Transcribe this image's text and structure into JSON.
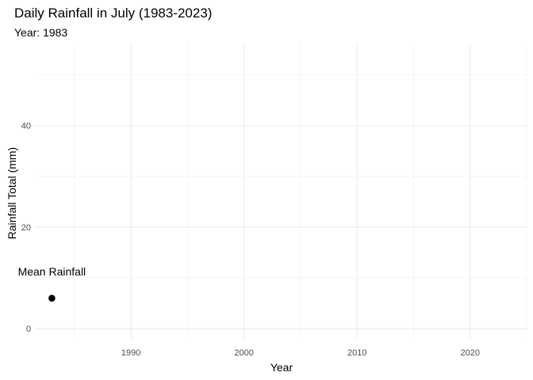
{
  "chart_data": {
    "type": "scatter",
    "title": "Daily Rainfall in July (1983-2023)",
    "subtitle": "Year: 1983",
    "xlabel": "Year",
    "ylabel": "Rainfall Total (mm)",
    "xlim": [
      1981.5,
      2025
    ],
    "ylim": [
      -2,
      56
    ],
    "x_ticks": [
      1990,
      2000,
      2010,
      2020
    ],
    "x_minor_ticks": [
      1985,
      1995,
      2005,
      2015,
      2025
    ],
    "y_ticks": [
      0,
      20,
      40
    ],
    "y_minor_ticks": [
      10,
      30,
      50
    ],
    "grid": true,
    "series": [
      {
        "name": "Mean Rainfall",
        "points": [
          {
            "x": 1983,
            "y": 6
          }
        ],
        "color": "#000000"
      }
    ],
    "annotation": {
      "text": "Mean Rainfall",
      "x": 1983,
      "y": 10.5
    }
  }
}
